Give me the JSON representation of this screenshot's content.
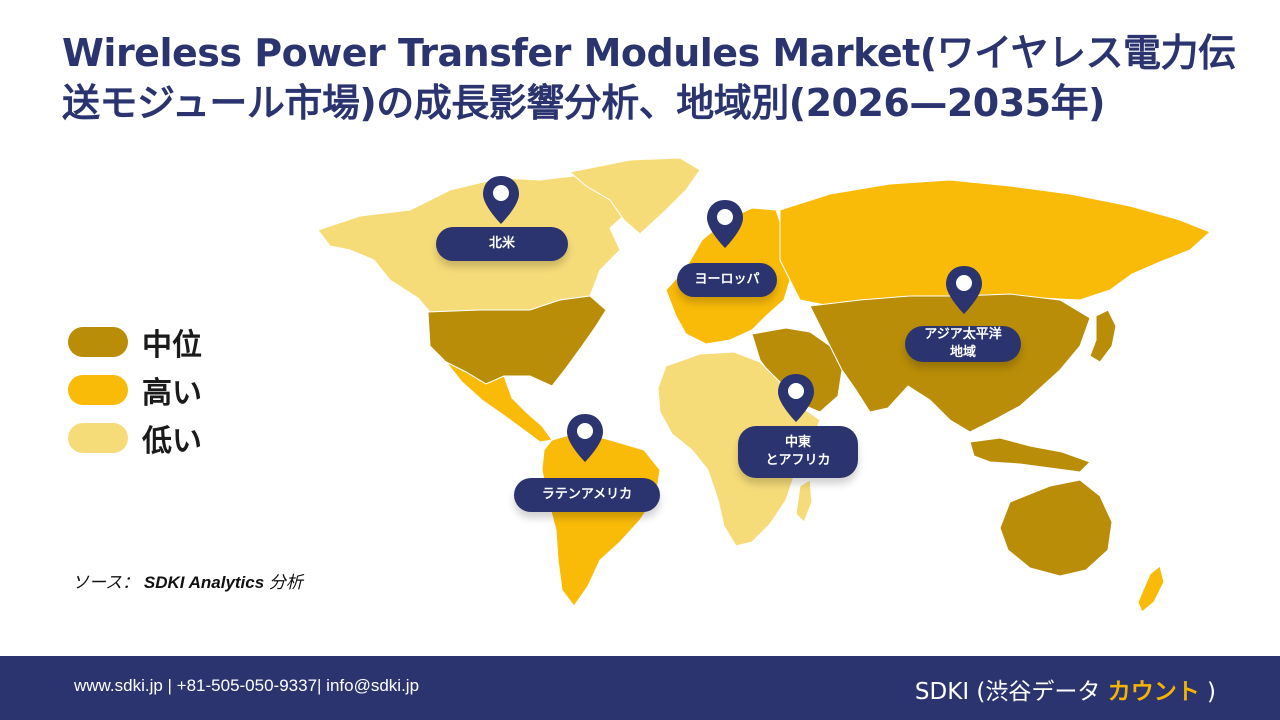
{
  "title": "Wireless Power Transfer Modules Market(ワイヤレス電力伝送モジュール市場)の成長影響分析、地域別(2026—2035年)",
  "legend": [
    {
      "label": "中位",
      "color": "#b98d07"
    },
    {
      "label": "高い",
      "color": "#f9bb08"
    },
    {
      "label": "低い",
      "color": "#f6dc79"
    }
  ],
  "regions": {
    "north_america": {
      "label": "北米",
      "level": "中位"
    },
    "europe": {
      "label": "ヨーロッパ",
      "level": "高い"
    },
    "asia_pacific": {
      "line1": "アジア太平洋",
      "line2": "地域",
      "level": "中位"
    },
    "middle_east_africa": {
      "line1": "中東",
      "line2": "とアフリカ",
      "level": "低い"
    },
    "latin_america": {
      "label": "ラテンアメリカ",
      "level": "高い"
    }
  },
  "source": {
    "prefix": "ソース：",
    "name": "SDKI Analytics",
    "suffix": "分析"
  },
  "footer": {
    "contact": "www.sdki.jp | +81-505-050-9337| info@sdki.jp",
    "brand_prefix": "SDKI (渋谷データ",
    "brand_accent": "カウント",
    "brand_suffix": ")"
  },
  "colors": {
    "navy": "#2c3470",
    "medium": "#b98d07",
    "high": "#f9bb08",
    "low": "#f6dc79"
  },
  "icons": [
    "map-pin-icon"
  ]
}
